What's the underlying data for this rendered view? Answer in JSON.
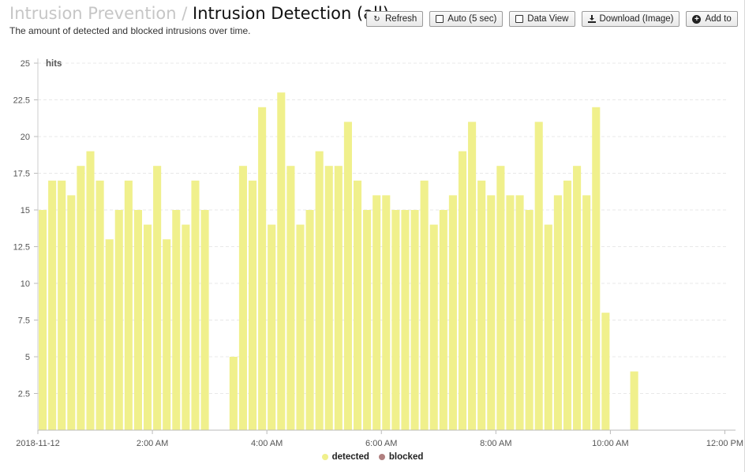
{
  "breadcrumb": {
    "parent": "Intrusion Prevention",
    "separator": "/",
    "current": "Intrusion Detection (all)"
  },
  "subtitle": "The amount of detected and blocked intrusions over time.",
  "toolbar": {
    "refresh": "Refresh",
    "auto": "Auto (5 sec)",
    "data_view": "Data View",
    "download": "Download (Image)",
    "add_to": "Add to"
  },
  "colors": {
    "detected": "#f0f08c",
    "blocked": "#b08080"
  },
  "chart_data": {
    "type": "bar",
    "ylabel": "hits",
    "ylim": [
      0,
      25
    ],
    "yticks": [
      "2.5",
      "5",
      "7.5",
      "10",
      "12.5",
      "15",
      "17.5",
      "20",
      "22.5",
      "25"
    ],
    "xticks": [
      "2018-11-12",
      "2:00 AM",
      "4:00 AM",
      "6:00 AM",
      "8:00 AM",
      "10:00 AM",
      "12:00 PM"
    ],
    "x_start": "2018-11-12 00:00",
    "interval_minutes": 10,
    "legend_position": "bottom",
    "grid": true,
    "series": [
      {
        "name": "detected",
        "values": [
          15,
          17,
          17,
          16,
          18,
          19,
          17,
          13,
          15,
          17,
          15,
          14,
          18,
          13,
          15,
          14,
          17,
          15,
          null,
          null,
          5,
          18,
          17,
          22,
          14,
          23,
          18,
          14,
          15,
          19,
          18,
          18,
          21,
          17,
          15,
          16,
          16,
          15,
          15,
          15,
          17,
          14,
          15,
          16,
          19,
          21,
          17,
          16,
          18,
          16,
          16,
          15,
          21,
          14,
          16,
          17,
          18,
          16,
          22,
          8,
          null,
          null,
          4
        ]
      },
      {
        "name": "blocked",
        "values": []
      }
    ]
  }
}
